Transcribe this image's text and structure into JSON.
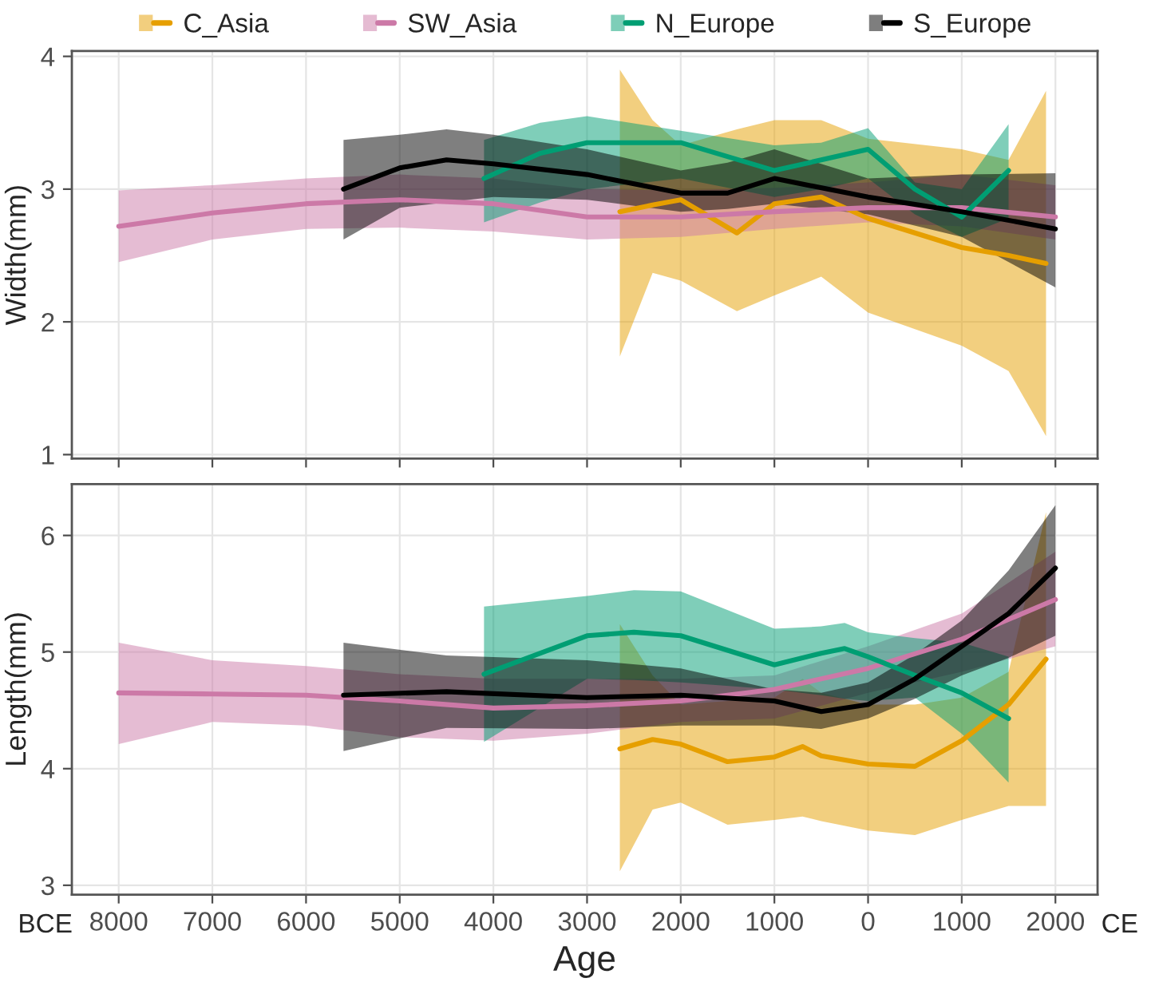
{
  "chart_data": [
    {
      "type": "line",
      "ylabel": "Width(mm)",
      "xlim": [
        -8500,
        2450
      ],
      "ylim": [
        0.97,
        4.04
      ],
      "yticks": [
        1,
        2,
        3,
        4
      ],
      "xticks": [
        {
          "value": -8000,
          "label": null
        },
        {
          "value": -7000,
          "label": null
        },
        {
          "value": -6000,
          "label": null
        },
        {
          "value": -5000,
          "label": null
        },
        {
          "value": -4000,
          "label": null
        },
        {
          "value": -3000,
          "label": null
        },
        {
          "value": -2000,
          "label": null
        },
        {
          "value": -1000,
          "label": null
        },
        {
          "value": 0,
          "label": null
        },
        {
          "value": 1000,
          "label": null
        },
        {
          "value": 2000,
          "label": null
        }
      ],
      "grid": true,
      "legend": "top",
      "tick_labels": "y",
      "series": [
        {
          "name": "C_Asia",
          "color": "#e69f00",
          "x": [
            -2650,
            -2300,
            -2000,
            -1400,
            -1000,
            -500,
            0,
            1000,
            1500,
            1900
          ],
          "values": [
            2.83,
            2.88,
            2.92,
            2.67,
            2.89,
            2.94,
            2.78,
            2.56,
            2.5,
            2.44
          ],
          "lower": [
            1.74,
            2.37,
            2.31,
            2.08,
            2.2,
            2.34,
            2.07,
            1.82,
            1.63,
            1.14
          ],
          "upper": [
            3.9,
            3.52,
            3.33,
            3.45,
            3.52,
            3.52,
            3.38,
            3.3,
            3.22,
            3.74
          ]
        },
        {
          "name": "SW_Asia",
          "color": "#cc79a7",
          "x": [
            -8000,
            -7000,
            -6000,
            -5000,
            -4000,
            -3000,
            -2000,
            -1000,
            0,
            1000,
            2000
          ],
          "values": [
            2.72,
            2.82,
            2.89,
            2.92,
            2.89,
            2.79,
            2.79,
            2.83,
            2.86,
            2.86,
            2.79
          ],
          "lower": [
            2.45,
            2.62,
            2.7,
            2.71,
            2.68,
            2.62,
            2.64,
            2.7,
            2.75,
            2.72,
            2.62
          ],
          "upper": [
            2.99,
            3.03,
            3.08,
            3.11,
            3.08,
            3.0,
            2.99,
            3.01,
            3.05,
            3.11,
            3.03
          ]
        },
        {
          "name": "N_Europe",
          "color": "#009e73",
          "x": [
            -4100,
            -3500,
            -3000,
            -2000,
            -1000,
            -500,
            0,
            500,
            1000,
            1500
          ],
          "values": [
            3.08,
            3.27,
            3.35,
            3.35,
            3.14,
            3.22,
            3.3,
            3.0,
            2.79,
            3.14
          ],
          "lower": [
            2.75,
            2.9,
            3.0,
            3.08,
            2.94,
            3.0,
            3.08,
            2.81,
            2.64,
            2.78
          ],
          "upper": [
            3.37,
            3.5,
            3.55,
            3.44,
            3.33,
            3.35,
            3.46,
            3.05,
            3.0,
            3.49
          ]
        },
        {
          "name": "S_Europe",
          "color": "#000000",
          "x": [
            -5600,
            -5000,
            -4500,
            -4000,
            -3000,
            -2000,
            -1500,
            -1000,
            0,
            1000,
            2000
          ],
          "values": [
            3.0,
            3.16,
            3.22,
            3.19,
            3.11,
            2.97,
            2.97,
            3.08,
            2.94,
            2.83,
            2.7
          ],
          "lower": [
            2.62,
            2.86,
            2.9,
            2.94,
            2.92,
            2.83,
            2.85,
            2.89,
            2.81,
            2.64,
            2.26
          ],
          "upper": [
            3.37,
            3.41,
            3.45,
            3.41,
            3.3,
            3.14,
            3.2,
            3.3,
            3.08,
            3.11,
            3.12
          ]
        }
      ]
    },
    {
      "type": "line",
      "ylabel": "Length(mm)",
      "xlabel": "Age",
      "xlim": [
        -8500,
        2450
      ],
      "ylim": [
        2.92,
        6.44
      ],
      "yticks": [
        3,
        4,
        5,
        6
      ],
      "xticks": [
        {
          "value": -8000,
          "label": "8000"
        },
        {
          "value": -7000,
          "label": "7000"
        },
        {
          "value": -6000,
          "label": "6000"
        },
        {
          "value": -5000,
          "label": "5000"
        },
        {
          "value": -4000,
          "label": "4000"
        },
        {
          "value": -3000,
          "label": "3000"
        },
        {
          "value": -2000,
          "label": "2000"
        },
        {
          "value": -1000,
          "label": "1000"
        },
        {
          "value": 0,
          "label": "0"
        },
        {
          "value": 1000,
          "label": "1000"
        },
        {
          "value": 2000,
          "label": "2000"
        }
      ],
      "grid": true,
      "annotations": [
        "BCE",
        "CE"
      ],
      "series": [
        {
          "color": "#e69f00",
          "x": [
            -2650,
            -2300,
            -2000,
            -1500,
            -1000,
            -700,
            -500,
            0,
            500,
            1000,
            1500,
            1900
          ],
          "values": [
            4.17,
            4.25,
            4.21,
            4.06,
            4.1,
            4.19,
            4.11,
            4.04,
            4.02,
            4.24,
            4.55,
            4.94
          ],
          "lower": [
            3.12,
            3.65,
            3.71,
            3.52,
            3.56,
            3.59,
            3.55,
            3.47,
            3.43,
            3.56,
            3.68,
            3.68
          ],
          "upper": [
            5.24,
            4.8,
            4.55,
            4.58,
            4.61,
            4.77,
            4.65,
            4.55,
            4.55,
            4.61,
            4.83,
            6.2
          ]
        },
        {
          "color": "#cc79a7",
          "x": [
            -8000,
            -7000,
            -6000,
            -5000,
            -4000,
            -3000,
            -2000,
            -1000,
            0,
            1000,
            2000
          ],
          "values": [
            4.65,
            4.64,
            4.63,
            4.58,
            4.52,
            4.54,
            4.58,
            4.68,
            4.86,
            5.11,
            5.45
          ],
          "lower": [
            4.21,
            4.4,
            4.37,
            4.27,
            4.24,
            4.3,
            4.4,
            4.43,
            4.65,
            4.83,
            5.05
          ],
          "upper": [
            5.08,
            4.93,
            4.88,
            4.81,
            4.77,
            4.77,
            4.77,
            4.8,
            5.05,
            5.33,
            5.86
          ]
        },
        {
          "color": "#009e73",
          "x": [
            -4100,
            -3000,
            -2500,
            -2000,
            -1000,
            -500,
            -250,
            0,
            500,
            1000,
            1500
          ],
          "values": [
            4.81,
            5.14,
            5.17,
            5.14,
            4.89,
            4.99,
            5.03,
            4.96,
            4.8,
            4.65,
            4.43
          ],
          "lower": [
            4.23,
            4.77,
            4.76,
            4.74,
            4.68,
            4.63,
            4.6,
            4.58,
            4.61,
            4.3,
            3.88
          ],
          "upper": [
            5.39,
            5.48,
            5.53,
            5.52,
            5.2,
            5.22,
            5.25,
            5.17,
            5.12,
            5.08,
            4.96
          ]
        },
        {
          "color": "#000000",
          "x": [
            -5600,
            -4500,
            -3000,
            -2000,
            -1000,
            -500,
            0,
            500,
            1000,
            1500,
            2000
          ],
          "values": [
            4.63,
            4.66,
            4.61,
            4.63,
            4.58,
            4.49,
            4.55,
            4.77,
            5.05,
            5.33,
            5.72
          ],
          "lower": [
            4.15,
            4.35,
            4.34,
            4.37,
            4.37,
            4.34,
            4.43,
            4.6,
            4.8,
            4.95,
            5.14
          ],
          "upper": [
            5.08,
            4.97,
            4.93,
            4.86,
            4.68,
            4.65,
            4.74,
            4.98,
            5.27,
            5.7,
            6.26
          ]
        }
      ]
    }
  ]
}
